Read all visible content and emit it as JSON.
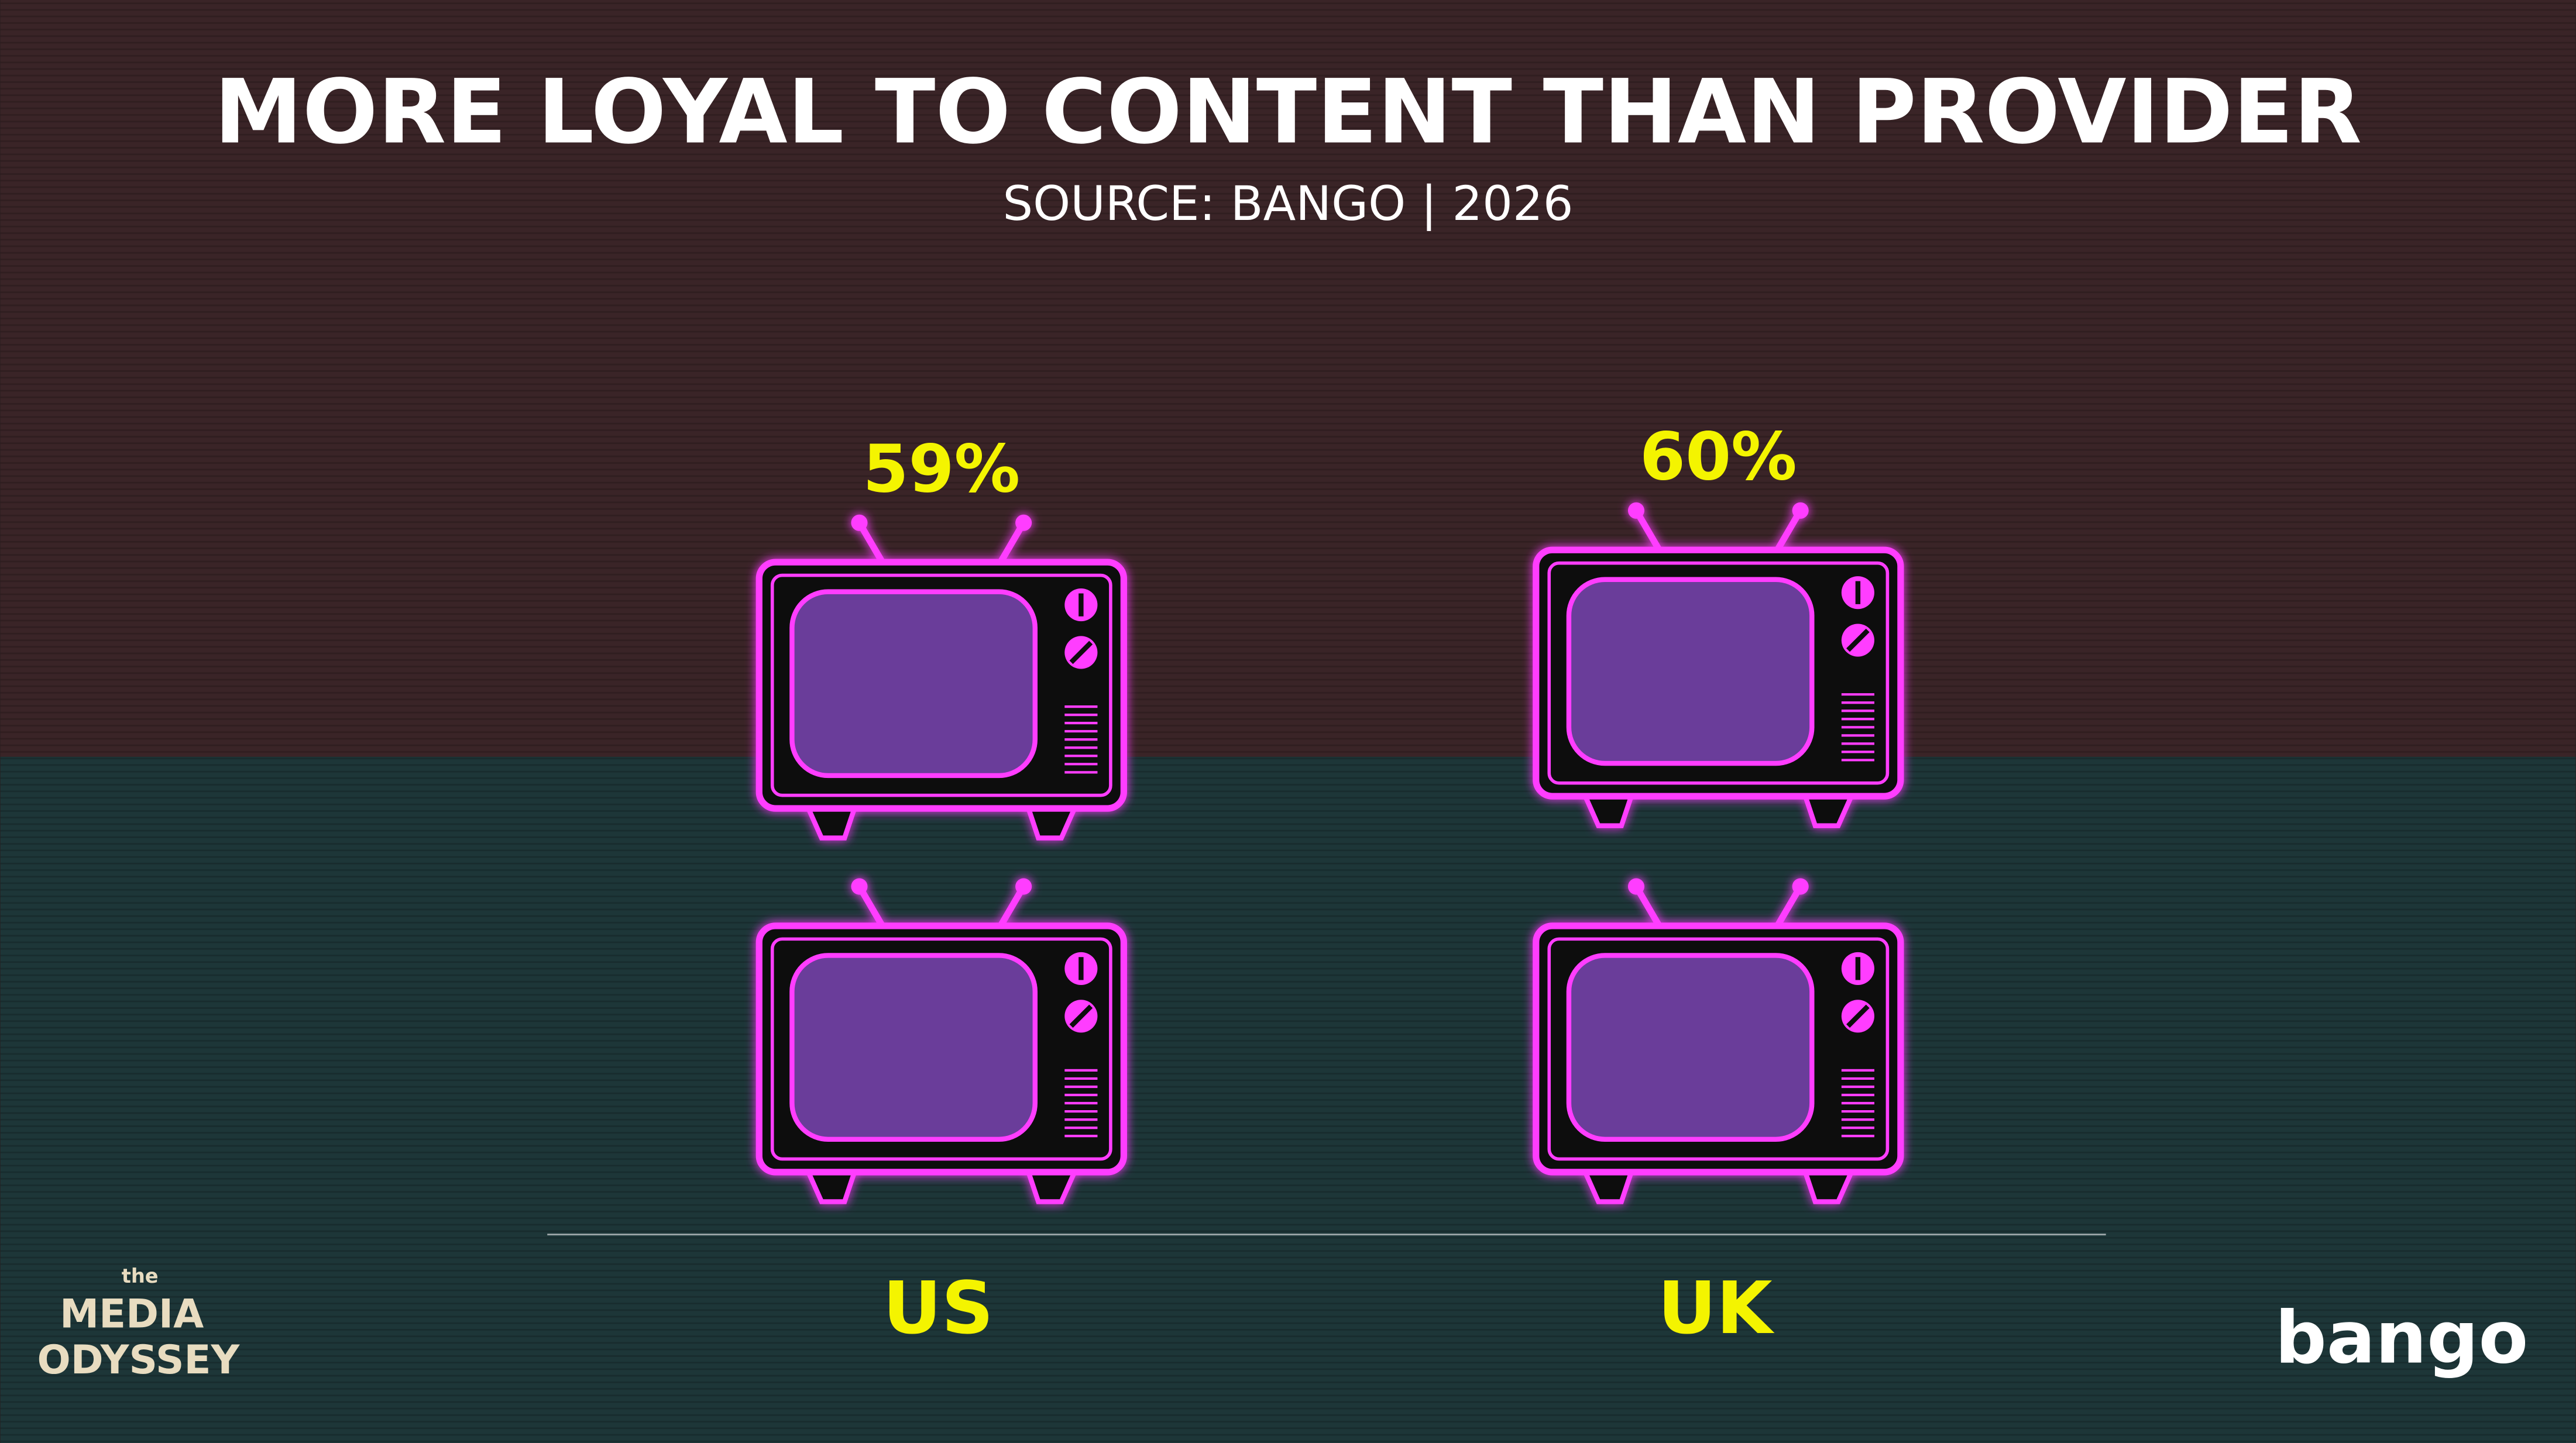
{
  "chart_data": {
    "type": "bar",
    "title": "MORE LOYAL TO CONTENT THAN PROVIDER",
    "subtitle": "SOURCE: BANGO | 2026",
    "categories": [
      "US",
      "UK"
    ],
    "values": [
      59,
      60
    ],
    "value_labels": [
      "59%",
      "60%"
    ],
    "color": "#ff3cff",
    "label_color": "#f4f400",
    "ylim": [
      0,
      60
    ],
    "logos": [
      "the",
      "MEDIA",
      "ODYSSEY",
      "bango"
    ]
  }
}
